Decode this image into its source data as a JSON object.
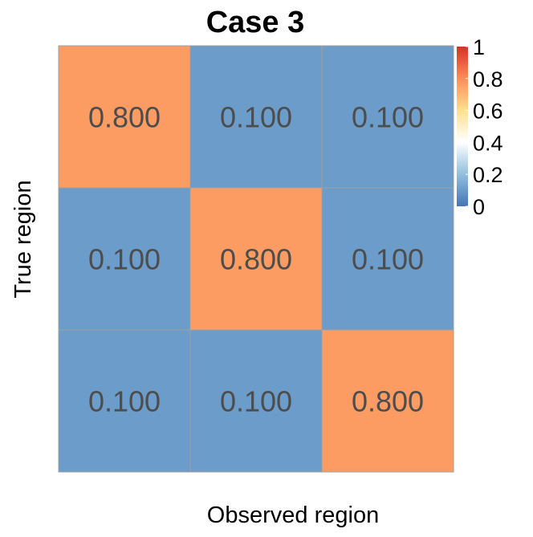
{
  "chart_data": {
    "type": "heatmap",
    "title": "Case 3",
    "xlabel": "Observed region",
    "ylabel": "True region",
    "matrix": [
      [
        0.8,
        0.1,
        0.1
      ],
      [
        0.1,
        0.8,
        0.1
      ],
      [
        0.1,
        0.1,
        0.8
      ]
    ],
    "cell_labels": [
      [
        "0.800",
        "0.100",
        "0.100"
      ],
      [
        "0.100",
        "0.800",
        "0.100"
      ],
      [
        "0.100",
        "0.100",
        "0.800"
      ]
    ],
    "colorbar": {
      "range": [
        0,
        1
      ],
      "ticks": [
        {
          "value": 0,
          "label": "0"
        },
        {
          "value": 0.2,
          "label": "0.2"
        },
        {
          "value": 0.4,
          "label": "0.4"
        },
        {
          "value": 0.6,
          "label": "0.6"
        },
        {
          "value": 0.8,
          "label": "0.8"
        },
        {
          "value": 1,
          "label": "1"
        }
      ],
      "gradient_colors": [
        "#4575b4",
        "#91bfdb",
        "#ffffff",
        "#fee090",
        "#fc8d59",
        "#d73027"
      ]
    },
    "cell_colors": {
      "low": "#6c9cc9",
      "high": "#fc9c63"
    },
    "grid_color": "#a0a0a0",
    "label_color": "#4d4d4d",
    "legend_position": "right"
  }
}
